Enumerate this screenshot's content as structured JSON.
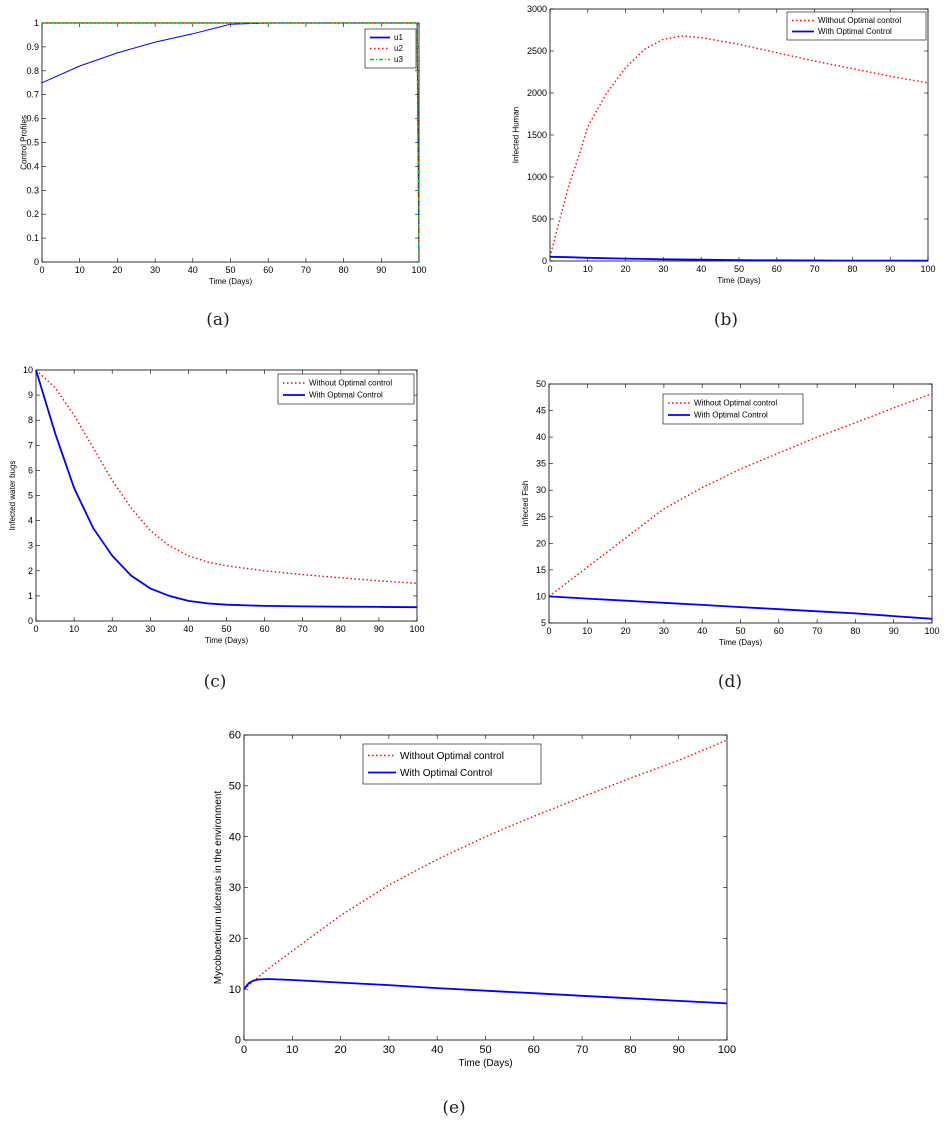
{
  "colors": {
    "red": "#ff0000",
    "blue": "#0000ff",
    "green": "#00cc00"
  },
  "chart_data": [
    {
      "type": "line",
      "caption": "(a)",
      "xlabel": "Time (Days)",
      "ylabel": "Control Profiles",
      "xlim": [
        0,
        100
      ],
      "ylim": [
        0,
        1
      ],
      "xticks": [
        0,
        10,
        20,
        30,
        40,
        50,
        60,
        70,
        80,
        90,
        100
      ],
      "yticks": [
        0,
        0.1,
        0.2,
        0.3,
        0.4,
        0.5,
        0.6,
        0.7,
        0.8,
        0.9,
        1
      ],
      "legend_position": "top-right",
      "series": [
        {
          "name": "u1",
          "style": "solid",
          "color": "#0000ff",
          "x": [
            0,
            10,
            20,
            30,
            40,
            45,
            50,
            60,
            70,
            80,
            90,
            99.5,
            100
          ],
          "y": [
            0.75,
            0.82,
            0.875,
            0.92,
            0.955,
            0.975,
            0.995,
            1,
            1,
            1,
            1,
            1,
            0
          ]
        },
        {
          "name": "u2",
          "style": "dotted",
          "color": "#ff0000",
          "x": [
            0,
            20,
            40,
            60,
            80,
            99.5,
            100
          ],
          "y": [
            1,
            1,
            1,
            1,
            1,
            1,
            0
          ]
        },
        {
          "name": "u3",
          "style": "dashdot",
          "color": "#00cc00",
          "x": [
            0,
            20,
            40,
            60,
            80,
            99.5,
            100
          ],
          "y": [
            1,
            1,
            1,
            1,
            1,
            1,
            0
          ]
        }
      ]
    },
    {
      "type": "line",
      "caption": "(b)",
      "xlabel": "Time (Days)",
      "ylabel": "Infected Human",
      "xlim": [
        0,
        100
      ],
      "ylim": [
        0,
        3000
      ],
      "xticks": [
        0,
        10,
        20,
        30,
        40,
        50,
        60,
        70,
        80,
        90,
        100
      ],
      "yticks": [
        0,
        500,
        1000,
        1500,
        2000,
        2500,
        3000
      ],
      "legend_position": "top-right",
      "series": [
        {
          "name": "Without Optimal control",
          "style": "dotted",
          "color": "#ff0000",
          "x": [
            0,
            2,
            5,
            8,
            10,
            15,
            20,
            25,
            30,
            35,
            40,
            50,
            60,
            70,
            80,
            90,
            100
          ],
          "y": [
            50,
            400,
            900,
            1300,
            1600,
            2000,
            2300,
            2520,
            2640,
            2680,
            2660,
            2580,
            2480,
            2380,
            2290,
            2200,
            2120
          ]
        },
        {
          "name": "With Optimal Control",
          "style": "solid",
          "color": "#0000ff",
          "x": [
            0,
            5,
            10,
            20,
            30,
            40,
            50,
            60,
            80,
            100
          ],
          "y": [
            50,
            45,
            38,
            28,
            20,
            15,
            11,
            8,
            5,
            3
          ]
        }
      ]
    },
    {
      "type": "line",
      "caption": "(c)",
      "xlabel": "Time (Days)",
      "ylabel": "Infected water bugs",
      "xlim": [
        0,
        100
      ],
      "ylim": [
        0,
        10
      ],
      "xticks": [
        0,
        10,
        20,
        30,
        40,
        50,
        60,
        70,
        80,
        90,
        100
      ],
      "yticks": [
        0,
        1,
        2,
        3,
        4,
        5,
        6,
        7,
        8,
        9,
        10
      ],
      "legend_position": "top-right",
      "series": [
        {
          "name": "Without Optimal control",
          "style": "dotted",
          "color": "#ff0000",
          "x": [
            0,
            5,
            10,
            15,
            20,
            25,
            30,
            35,
            40,
            45,
            50,
            60,
            70,
            80,
            90,
            100
          ],
          "y": [
            10,
            9.3,
            8.2,
            6.9,
            5.6,
            4.5,
            3.6,
            3.0,
            2.6,
            2.35,
            2.2,
            2.0,
            1.85,
            1.72,
            1.6,
            1.5
          ]
        },
        {
          "name": "With Optimal Control",
          "style": "solid",
          "color": "#0000ff",
          "x": [
            0,
            5,
            10,
            15,
            20,
            25,
            30,
            35,
            40,
            45,
            50,
            60,
            70,
            80,
            90,
            100
          ],
          "y": [
            10,
            7.5,
            5.3,
            3.7,
            2.6,
            1.8,
            1.3,
            1.0,
            0.8,
            0.7,
            0.65,
            0.6,
            0.58,
            0.57,
            0.56,
            0.55
          ]
        }
      ]
    },
    {
      "type": "line",
      "caption": "(d)",
      "xlabel": "Time (Days)",
      "ylabel": "Infected Fish",
      "xlim": [
        0,
        100
      ],
      "ylim": [
        5,
        50
      ],
      "xticks": [
        0,
        10,
        20,
        30,
        40,
        50,
        60,
        70,
        80,
        90,
        100
      ],
      "yticks": [
        5,
        10,
        15,
        20,
        25,
        30,
        35,
        40,
        45,
        50
      ],
      "legend_position": "top-center",
      "series": [
        {
          "name": "Without Optimal control",
          "style": "dotted",
          "color": "#ff0000",
          "x": [
            0,
            10,
            20,
            30,
            40,
            50,
            60,
            70,
            80,
            90,
            100
          ],
          "y": [
            10,
            15.5,
            21,
            26.5,
            30.5,
            34,
            37,
            40,
            42.7,
            45.5,
            48.2
          ]
        },
        {
          "name": "With Optimal Control",
          "style": "solid",
          "color": "#0000ff",
          "x": [
            0,
            10,
            20,
            30,
            40,
            50,
            60,
            70,
            80,
            90,
            100
          ],
          "y": [
            10,
            9.6,
            9.2,
            8.8,
            8.4,
            8.0,
            7.6,
            7.2,
            6.8,
            6.3,
            5.8
          ]
        }
      ]
    },
    {
      "type": "line",
      "caption": "(e)",
      "xlabel": "Time (Days)",
      "ylabel": "Mycobacterium ulcerans in the environment",
      "xlim": [
        0,
        100
      ],
      "ylim": [
        0,
        60
      ],
      "xticks": [
        0,
        10,
        20,
        30,
        40,
        50,
        60,
        70,
        80,
        90,
        100
      ],
      "yticks": [
        0,
        10,
        20,
        30,
        40,
        50,
        60
      ],
      "legend_position": "top-center",
      "series": [
        {
          "name": "Without Optimal control",
          "style": "dotted",
          "color": "#ff0000",
          "x": [
            0,
            5,
            10,
            15,
            20,
            25,
            30,
            40,
            50,
            60,
            70,
            80,
            90,
            100
          ],
          "y": [
            10,
            14,
            17.5,
            21,
            24.5,
            27.5,
            30.5,
            35.5,
            40,
            44,
            47.8,
            51.5,
            55,
            59
          ]
        },
        {
          "name": "With Optimal Control",
          "style": "solid",
          "color": "#0000ff",
          "x": [
            0,
            1,
            2,
            3,
            5,
            10,
            20,
            30,
            40,
            50,
            60,
            70,
            80,
            90,
            100
          ],
          "y": [
            10,
            11.2,
            11.7,
            11.9,
            12,
            11.8,
            11.3,
            10.8,
            10.2,
            9.7,
            9.2,
            8.7,
            8.2,
            7.7,
            7.2
          ]
        }
      ]
    }
  ]
}
